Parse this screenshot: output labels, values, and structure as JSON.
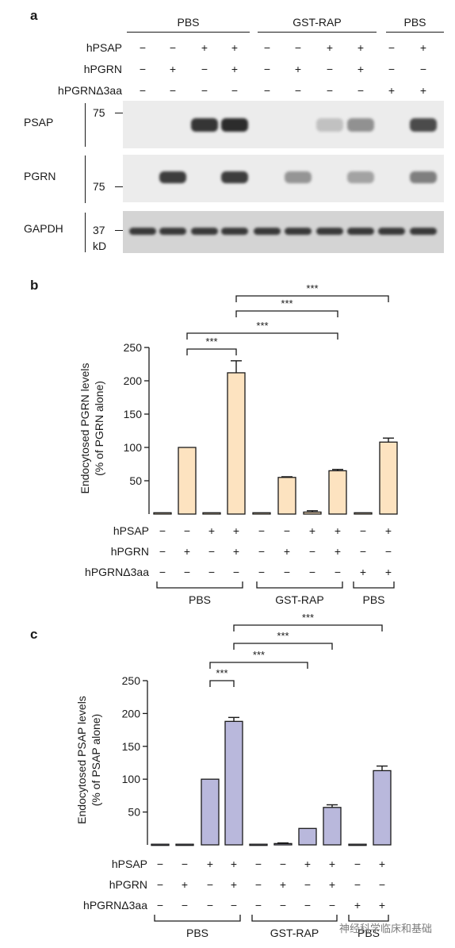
{
  "panel_a": {
    "letter": "a",
    "groups": [
      "PBS",
      "GST-RAP",
      "PBS"
    ],
    "rows": [
      {
        "label": "hPSAP",
        "signs": [
          "−",
          "−",
          "+",
          "+",
          "−",
          "−",
          "+",
          "+",
          "−",
          "+"
        ]
      },
      {
        "label": "hPGRN",
        "signs": [
          "−",
          "+",
          "−",
          "+",
          "−",
          "+",
          "−",
          "+",
          "−",
          "−"
        ]
      },
      {
        "label": "hPGRNΔ3aa",
        "signs": [
          "−",
          "−",
          "−",
          "−",
          "−",
          "−",
          "−",
          "−",
          "+",
          "+"
        ]
      }
    ],
    "blots": [
      {
        "label": "PSAP",
        "marker": "75",
        "marker_pos": "top",
        "intensities": [
          0,
          0,
          0.92,
          0.96,
          0,
          0,
          0.28,
          0.5,
          0,
          0.82
        ]
      },
      {
        "label": "PGRN",
        "marker": "75",
        "marker_pos": "bottom",
        "intensities": [
          0,
          0.88,
          0,
          0.88,
          0,
          0.48,
          0,
          0.42,
          0,
          0.58
        ]
      },
      {
        "label": "GAPDH",
        "marker": "37",
        "marker_pos": "middle",
        "intensities": [
          0.9,
          0.9,
          0.9,
          0.9,
          0.9,
          0.9,
          0.9,
          0.9,
          0.9,
          0.9
        ]
      }
    ],
    "kd_label": "kD"
  },
  "chart_data": [
    {
      "type": "bar",
      "panel": "b",
      "ylabel_lines": [
        "Endocytosed PGRN levels",
        "(% of PGRN alone)"
      ],
      "ylim": [
        0,
        250
      ],
      "yticks": [
        50,
        100,
        150,
        200,
        250
      ],
      "values": [
        2,
        100,
        2,
        212,
        2,
        55,
        3,
        65,
        2,
        108
      ],
      "errors": [
        0,
        0,
        0,
        18,
        0,
        1,
        2,
        2,
        0,
        6
      ],
      "bar_color": "#fde3c0",
      "significance": [
        {
          "from": 1,
          "to": 3,
          "label": "***"
        },
        {
          "from": 1,
          "to": 7,
          "label": "***"
        },
        {
          "from": 3,
          "to": 7,
          "label": "***"
        },
        {
          "from": 3,
          "to": 9,
          "label": "***"
        }
      ],
      "rows": [
        {
          "label": "hPSAP",
          "signs": [
            "−",
            "−",
            "+",
            "+",
            "−",
            "−",
            "+",
            "+",
            "−",
            "+"
          ]
        },
        {
          "label": "hPGRN",
          "signs": [
            "−",
            "+",
            "−",
            "+",
            "−",
            "+",
            "−",
            "+",
            "−",
            "−"
          ]
        },
        {
          "label": "hPGRNΔ3aa",
          "signs": [
            "−",
            "−",
            "−",
            "−",
            "−",
            "−",
            "−",
            "−",
            "+",
            "+"
          ]
        }
      ],
      "groups": [
        "PBS",
        "GST-RAP",
        "PBS"
      ]
    },
    {
      "type": "bar",
      "panel": "c",
      "ylabel_lines": [
        "Endocytosed PSAP levels",
        "(% of PSAP alone)"
      ],
      "ylim": [
        0,
        250
      ],
      "yticks": [
        50,
        100,
        150,
        200,
        250
      ],
      "values": [
        1,
        1,
        100,
        188,
        1,
        2,
        25,
        57,
        1,
        113
      ],
      "errors": [
        0,
        0,
        0,
        6,
        0,
        1,
        0,
        4,
        0,
        7
      ],
      "bar_color": "#b9b8dc",
      "significance": [
        {
          "from": 2,
          "to": 3,
          "label": "***"
        },
        {
          "from": 2,
          "to": 6,
          "label": "***"
        },
        {
          "from": 3,
          "to": 7,
          "label": "***"
        },
        {
          "from": 3,
          "to": 9,
          "label": "***"
        }
      ],
      "rows": [
        {
          "label": "hPSAP",
          "signs": [
            "−",
            "−",
            "+",
            "+",
            "−",
            "−",
            "+",
            "+",
            "−",
            "+"
          ]
        },
        {
          "label": "hPGRN",
          "signs": [
            "−",
            "+",
            "−",
            "+",
            "−",
            "+",
            "−",
            "+",
            "−",
            "−"
          ]
        },
        {
          "label": "hPGRNΔ3aa",
          "signs": [
            "−",
            "−",
            "−",
            "−",
            "−",
            "−",
            "−",
            "−",
            "+",
            "+"
          ]
        }
      ],
      "groups": [
        "PBS",
        "GST-RAP",
        "PBS"
      ]
    }
  ],
  "watermark": "神经科学临床和基础"
}
